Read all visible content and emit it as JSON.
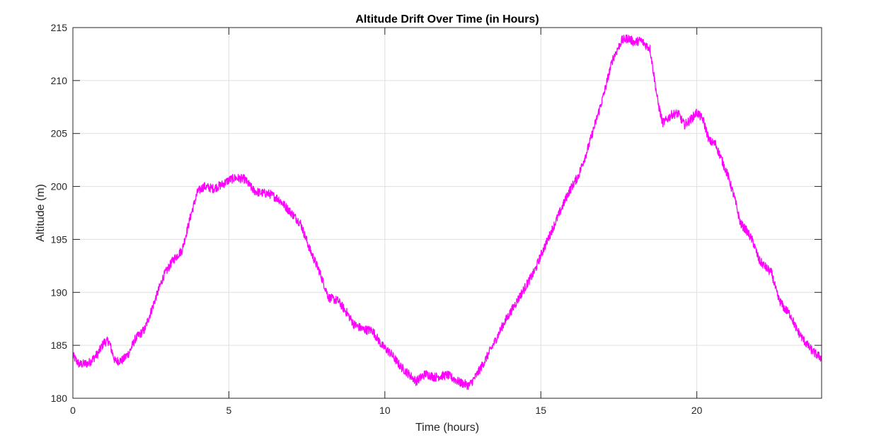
{
  "chart_data": {
    "type": "line",
    "title": "Altitude Drift Over Time (in Hours)",
    "xlabel": "Time (hours)",
    "ylabel": "Altitude (m)",
    "xlim": [
      0,
      24
    ],
    "ylim": [
      180,
      215
    ],
    "xticks": [
      0,
      5,
      10,
      15,
      20
    ],
    "yticks": [
      180,
      185,
      190,
      195,
      200,
      205,
      210,
      215
    ],
    "grid": true,
    "legend": "none",
    "line_color": "#ff00ff",
    "series": [
      {
        "x": [
          0,
          0.2,
          0.5,
          0.8,
          1.0,
          1.15,
          1.35,
          1.6,
          1.8,
          2.0,
          2.3,
          2.6,
          2.9,
          3.2,
          3.5,
          3.8,
          4.0,
          4.2,
          4.5,
          4.8,
          5.0,
          5.2,
          5.5,
          5.8,
          6.0,
          6.3,
          6.6,
          7.0,
          7.3,
          7.6,
          7.9,
          8.2,
          8.5,
          8.8,
          9.0,
          9.3,
          9.6,
          9.9,
          10.2,
          10.5,
          10.8,
          11.0,
          11.3,
          11.6,
          12.0,
          12.4,
          12.7,
          12.9,
          13.2,
          13.5,
          13.8,
          14.1,
          14.4,
          14.8,
          15.0,
          15.3,
          15.6,
          15.9,
          16.2,
          16.5,
          16.8,
          17.0,
          17.3,
          17.6,
          17.8,
          18.0,
          18.2,
          18.5,
          18.65,
          18.75,
          18.9,
          19.0,
          19.2,
          19.4,
          19.6,
          19.8,
          20.0,
          20.2,
          20.4,
          20.6,
          20.8,
          21.0,
          21.2,
          21.4,
          21.6,
          21.8,
          22.0,
          22.2,
          22.4,
          22.6,
          22.8,
          23.0,
          23.2,
          23.4,
          23.6,
          23.8,
          24.0
        ],
        "y": [
          184.0,
          183.2,
          183.3,
          184.2,
          185.3,
          185.4,
          183.5,
          183.6,
          184.3,
          185.6,
          186.5,
          189.0,
          191.5,
          193.0,
          194.0,
          197.5,
          199.5,
          200.0,
          199.8,
          200.2,
          200.6,
          200.8,
          200.7,
          199.6,
          199.4,
          199.3,
          198.8,
          197.5,
          196.5,
          194.0,
          192.0,
          189.5,
          189.2,
          188.0,
          187.0,
          186.5,
          186.4,
          185.0,
          184.2,
          183.0,
          182.2,
          181.6,
          182.3,
          182.0,
          182.2,
          181.5,
          181.2,
          182.0,
          183.5,
          185.2,
          187.0,
          188.5,
          190.0,
          192.0,
          193.5,
          195.5,
          197.5,
          199.5,
          201.0,
          203.5,
          206.5,
          208.5,
          212.0,
          213.8,
          214.0,
          213.6,
          213.8,
          213.0,
          210.0,
          208.0,
          206.0,
          206.2,
          206.8,
          206.9,
          205.8,
          206.3,
          207.0,
          206.3,
          204.3,
          204.0,
          202.5,
          201.0,
          199.0,
          196.5,
          195.8,
          194.8,
          193.0,
          192.4,
          191.8,
          189.5,
          188.5,
          187.9,
          186.5,
          185.6,
          184.8,
          184.2,
          183.8
        ]
      }
    ]
  }
}
